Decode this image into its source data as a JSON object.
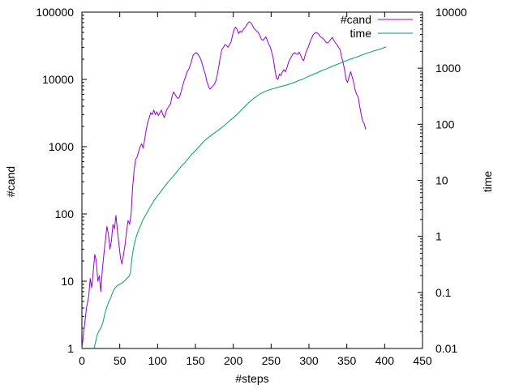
{
  "chart_data": {
    "type": "line",
    "xlabel": "#steps",
    "ylabel": "#cand",
    "y2label": "time",
    "xlim": [
      0,
      450
    ],
    "ylim": [
      1,
      100000
    ],
    "y2lim": [
      0.01,
      10000
    ],
    "yscale": "log",
    "y2scale": "log",
    "grid": false,
    "legend_position": "top-right",
    "x_ticks": [
      "0",
      "50",
      "100",
      "150",
      "200",
      "250",
      "300",
      "350",
      "400",
      "450"
    ],
    "y_ticks": [
      "1",
      "10",
      "100",
      "1000",
      "10000",
      "100000"
    ],
    "y2_ticks": [
      "0.01",
      "0.1",
      "1",
      "10",
      "100",
      "1000",
      "10000"
    ],
    "colors": {
      "cand": "#9400d3",
      "time": "#009e73"
    },
    "series": [
      {
        "name": "#cand",
        "axis": "left",
        "points": [
          [
            0,
            1
          ],
          [
            3,
            2
          ],
          [
            6,
            4
          ],
          [
            9,
            6
          ],
          [
            11,
            11
          ],
          [
            13,
            8
          ],
          [
            15,
            14
          ],
          [
            17,
            25
          ],
          [
            19,
            20
          ],
          [
            21,
            10
          ],
          [
            23,
            12
          ],
          [
            25,
            7
          ],
          [
            27,
            15
          ],
          [
            29,
            25
          ],
          [
            31,
            40
          ],
          [
            33,
            65
          ],
          [
            35,
            50
          ],
          [
            37,
            30
          ],
          [
            39,
            40
          ],
          [
            41,
            70
          ],
          [
            43,
            60
          ],
          [
            45,
            95
          ],
          [
            47,
            55
          ],
          [
            49,
            35
          ],
          [
            51,
            22
          ],
          [
            53,
            18
          ],
          [
            55,
            25
          ],
          [
            57,
            35
          ],
          [
            59,
            55
          ],
          [
            61,
            80
          ],
          [
            63,
            70
          ],
          [
            65,
            100
          ],
          [
            67,
            250
          ],
          [
            69,
            450
          ],
          [
            71,
            650
          ],
          [
            73,
            700
          ],
          [
            75,
            850
          ],
          [
            77,
            1000
          ],
          [
            79,
            1100
          ],
          [
            81,
            950
          ],
          [
            83,
            1300
          ],
          [
            85,
            1800
          ],
          [
            87,
            2300
          ],
          [
            89,
            2700
          ],
          [
            91,
            3200
          ],
          [
            93,
            3000
          ],
          [
            95,
            3500
          ],
          [
            97,
            3000
          ],
          [
            99,
            3300
          ],
          [
            101,
            2900
          ],
          [
            103,
            3200
          ],
          [
            105,
            3500
          ],
          [
            107,
            3000
          ],
          [
            109,
            2700
          ],
          [
            111,
            3300
          ],
          [
            113,
            3700
          ],
          [
            115,
            4000
          ],
          [
            117,
            4300
          ],
          [
            119,
            5500
          ],
          [
            121,
            6500
          ],
          [
            123,
            6000
          ],
          [
            125,
            5500
          ],
          [
            127,
            5200
          ],
          [
            129,
            5500
          ],
          [
            131,
            6500
          ],
          [
            133,
            8000
          ],
          [
            135,
            9500
          ],
          [
            137,
            11000
          ],
          [
            139,
            13000
          ],
          [
            141,
            14000
          ],
          [
            143,
            16000
          ],
          [
            145,
            19000
          ],
          [
            147,
            23000
          ],
          [
            149,
            24000
          ],
          [
            151,
            25000
          ],
          [
            153,
            24000
          ],
          [
            155,
            22000
          ],
          [
            157,
            20000
          ],
          [
            159,
            17000
          ],
          [
            161,
            14000
          ],
          [
            163,
            12000
          ],
          [
            165,
            9500
          ],
          [
            167,
            8000
          ],
          [
            169,
            7200
          ],
          [
            171,
            7500
          ],
          [
            173,
            8000
          ],
          [
            175,
            8500
          ],
          [
            177,
            9500
          ],
          [
            179,
            12000
          ],
          [
            181,
            16000
          ],
          [
            183,
            22000
          ],
          [
            185,
            28000
          ],
          [
            187,
            30000
          ],
          [
            189,
            33000
          ],
          [
            191,
            32000
          ],
          [
            193,
            30000
          ],
          [
            195,
            33000
          ],
          [
            197,
            36000
          ],
          [
            199,
            45000
          ],
          [
            201,
            55000
          ],
          [
            203,
            60000
          ],
          [
            205,
            55000
          ],
          [
            207,
            48000
          ],
          [
            209,
            52000
          ],
          [
            211,
            50000
          ],
          [
            213,
            55000
          ],
          [
            215,
            58000
          ],
          [
            217,
            62000
          ],
          [
            219,
            68000
          ],
          [
            221,
            72000
          ],
          [
            223,
            70000
          ],
          [
            225,
            65000
          ],
          [
            227,
            58000
          ],
          [
            229,
            55000
          ],
          [
            231,
            52000
          ],
          [
            233,
            50000
          ],
          [
            235,
            45000
          ],
          [
            237,
            40000
          ],
          [
            239,
            38000
          ],
          [
            241,
            40000
          ],
          [
            243,
            43000
          ],
          [
            245,
            38000
          ],
          [
            247,
            33000
          ],
          [
            249,
            30000
          ],
          [
            251,
            25000
          ],
          [
            253,
            20000
          ],
          [
            255,
            14000
          ],
          [
            257,
            10500
          ],
          [
            259,
            10000
          ],
          [
            261,
            12000
          ],
          [
            263,
            11500
          ],
          [
            265,
            13000
          ],
          [
            267,
            14000
          ],
          [
            269,
            13000
          ],
          [
            271,
            15000
          ],
          [
            273,
            18000
          ],
          [
            275,
            20000
          ],
          [
            277,
            22000
          ],
          [
            279,
            24000
          ],
          [
            281,
            25000
          ],
          [
            283,
            24000
          ],
          [
            285,
            23500
          ],
          [
            287,
            25500
          ],
          [
            289,
            23000
          ],
          [
            291,
            20000
          ],
          [
            293,
            19000
          ],
          [
            295,
            23000
          ],
          [
            297,
            27000
          ],
          [
            299,
            30000
          ],
          [
            301,
            35000
          ],
          [
            303,
            40000
          ],
          [
            305,
            45000
          ],
          [
            307,
            48000
          ],
          [
            309,
            50000
          ],
          [
            311,
            49000
          ],
          [
            313,
            47000
          ],
          [
            315,
            43000
          ],
          [
            317,
            42000
          ],
          [
            319,
            40000
          ],
          [
            321,
            38000
          ],
          [
            323,
            35000
          ],
          [
            325,
            35000
          ],
          [
            327,
            37000
          ],
          [
            329,
            40000
          ],
          [
            331,
            42000
          ],
          [
            333,
            38000
          ],
          [
            335,
            35000
          ],
          [
            337,
            33000
          ],
          [
            339,
            30000
          ],
          [
            341,
            28000
          ],
          [
            343,
            22000
          ],
          [
            345,
            18000
          ],
          [
            347,
            14000
          ],
          [
            349,
            10000
          ],
          [
            351,
            9000
          ],
          [
            353,
            11000
          ],
          [
            355,
            13000
          ],
          [
            357,
            11000
          ],
          [
            359,
            9000
          ],
          [
            361,
            7000
          ],
          [
            363,
            6000
          ],
          [
            365,
            5500
          ],
          [
            367,
            4000
          ],
          [
            369,
            3000
          ],
          [
            371,
            2400
          ],
          [
            373,
            2200
          ],
          [
            375,
            1800
          ]
        ]
      },
      {
        "name": "time",
        "axis": "right",
        "points": [
          [
            16,
            0.01
          ],
          [
            18,
            0.013
          ],
          [
            20,
            0.017
          ],
          [
            22,
            0.02
          ],
          [
            24,
            0.022
          ],
          [
            26,
            0.025
          ],
          [
            28,
            0.03
          ],
          [
            30,
            0.04
          ],
          [
            32,
            0.05
          ],
          [
            34,
            0.06
          ],
          [
            36,
            0.07
          ],
          [
            38,
            0.08
          ],
          [
            40,
            0.095
          ],
          [
            42,
            0.11
          ],
          [
            44,
            0.12
          ],
          [
            46,
            0.13
          ],
          [
            48,
            0.135
          ],
          [
            50,
            0.14
          ],
          [
            52,
            0.145
          ],
          [
            54,
            0.15
          ],
          [
            56,
            0.16
          ],
          [
            58,
            0.17
          ],
          [
            60,
            0.18
          ],
          [
            62,
            0.19
          ],
          [
            64,
            0.22
          ],
          [
            66,
            0.4
          ],
          [
            68,
            0.6
          ],
          [
            70,
            0.8
          ],
          [
            72,
            1.0
          ],
          [
            74,
            1.2
          ],
          [
            76,
            1.4
          ],
          [
            78,
            1.6
          ],
          [
            80,
            1.9
          ],
          [
            85,
            2.5
          ],
          [
            90,
            3.3
          ],
          [
            95,
            4.3
          ],
          [
            100,
            5.3
          ],
          [
            105,
            6.5
          ],
          [
            110,
            8
          ],
          [
            115,
            9.7
          ],
          [
            120,
            11.5
          ],
          [
            125,
            14
          ],
          [
            130,
            17
          ],
          [
            135,
            20
          ],
          [
            140,
            24
          ],
          [
            145,
            29
          ],
          [
            150,
            34
          ],
          [
            155,
            40
          ],
          [
            160,
            48
          ],
          [
            165,
            55
          ],
          [
            170,
            62
          ],
          [
            175,
            70
          ],
          [
            180,
            78
          ],
          [
            185,
            88
          ],
          [
            190,
            100
          ],
          [
            195,
            115
          ],
          [
            200,
            130
          ],
          [
            205,
            150
          ],
          [
            210,
            175
          ],
          [
            215,
            205
          ],
          [
            220,
            240
          ],
          [
            225,
            275
          ],
          [
            230,
            310
          ],
          [
            235,
            345
          ],
          [
            240,
            375
          ],
          [
            245,
            400
          ],
          [
            250,
            420
          ],
          [
            255,
            440
          ],
          [
            260,
            460
          ],
          [
            265,
            480
          ],
          [
            270,
            500
          ],
          [
            275,
            525
          ],
          [
            280,
            555
          ],
          [
            285,
            590
          ],
          [
            290,
            625
          ],
          [
            295,
            670
          ],
          [
            300,
            720
          ],
          [
            305,
            770
          ],
          [
            310,
            820
          ],
          [
            315,
            880
          ],
          [
            320,
            940
          ],
          [
            325,
            1000
          ],
          [
            330,
            1070
          ],
          [
            335,
            1140
          ],
          [
            340,
            1210
          ],
          [
            345,
            1290
          ],
          [
            350,
            1370
          ],
          [
            355,
            1450
          ],
          [
            360,
            1530
          ],
          [
            365,
            1620
          ],
          [
            370,
            1720
          ],
          [
            375,
            1820
          ],
          [
            380,
            1920
          ],
          [
            385,
            2020
          ],
          [
            390,
            2120
          ],
          [
            395,
            2220
          ],
          [
            400,
            2350
          ],
          [
            402,
            2400
          ]
        ]
      }
    ]
  }
}
